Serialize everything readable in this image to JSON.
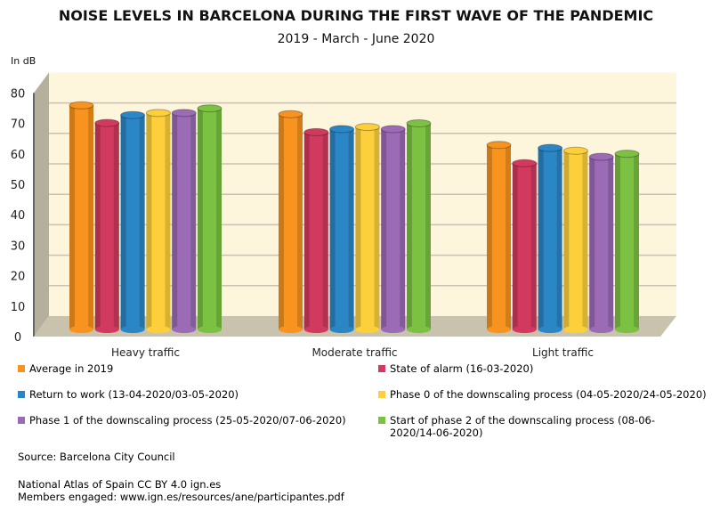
{
  "chart_data": {
    "type": "bar",
    "title": "NOISE LEVELS IN BARCELONA DURING THE FIRST WAVE OF THE PANDEMIC",
    "subtitle": "2019 - March - June 2020",
    "ylabel": "In dB",
    "ylim": [
      0,
      80
    ],
    "yticks": [
      0,
      10,
      20,
      30,
      40,
      50,
      60,
      70,
      80
    ],
    "categories": [
      "Heavy traffic",
      "Moderate traffic",
      "Light traffic"
    ],
    "series": [
      {
        "name": "Average in 2019",
        "color": "#f7931e",
        "values": [
          73.6,
          70.7,
          60.6
        ]
      },
      {
        "name": "State of alarm (16-03-2020)",
        "color": "#d13a5e",
        "values": [
          67.8,
          64.8,
          54.6
        ]
      },
      {
        "name": "Return to work (13-04-2020/03-05-2020)",
        "color": "#2b86c5",
        "values": [
          70.4,
          65.8,
          59.6
        ]
      },
      {
        "name": "Phase 0 of the downscaling process (04-05-2020/24-05-2020)",
        "color": "#fdd03b",
        "values": [
          71.1,
          66.5,
          58.7
        ]
      },
      {
        "name": "Phase 1 of the downscaling process (25-05-2020/07-06-2020)",
        "color": "#9b6bb5",
        "values": [
          71.1,
          65.8,
          56.7
        ]
      },
      {
        "name": "Start of phase 2 of the downscaling process (08-06-2020/14-06-2020)",
        "color": "#7bc142",
        "values": [
          72.6,
          67.7,
          57.7
        ]
      }
    ],
    "grid": true,
    "legend": "bottom"
  },
  "source": "Source: Barcelona City Council",
  "credits": [
    "National Atlas of Spain CC BY 4.0 ign.es",
    "Members engaged: www.ign.es/resources/ane/participantes.pdf"
  ]
}
